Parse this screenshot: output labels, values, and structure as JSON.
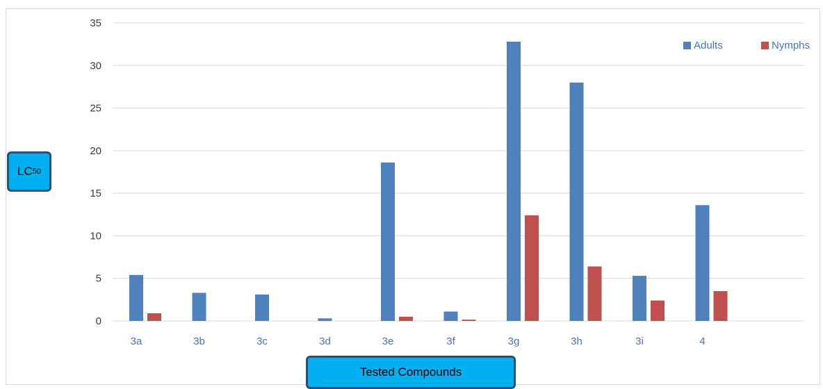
{
  "chart_data": {
    "type": "bar",
    "title": "",
    "xlabel": "Tested Compounds",
    "ylabel": "LC",
    "ylabel_sub": "50",
    "categories": [
      "3a",
      "3b",
      "3c",
      "3d",
      "3e",
      "3f",
      "3g",
      "3h",
      "3i",
      "4"
    ],
    "series": [
      {
        "name": "Adults",
        "color": "#4f81bd",
        "values": [
          5.4,
          3.3,
          3.1,
          0.3,
          18.6,
          1.1,
          32.8,
          28.0,
          5.3,
          13.6
        ]
      },
      {
        "name": "Nymphs",
        "color": "#c0504d",
        "values": [
          0.9,
          0,
          0,
          0,
          0.5,
          0.15,
          12.4,
          6.4,
          2.4,
          3.5
        ]
      }
    ],
    "ylim": [
      0,
      35
    ],
    "yticks": [
      "0",
      "5",
      "10",
      "15",
      "20",
      "25",
      "30",
      "35"
    ],
    "grid": true,
    "legend_position": "top-right"
  }
}
